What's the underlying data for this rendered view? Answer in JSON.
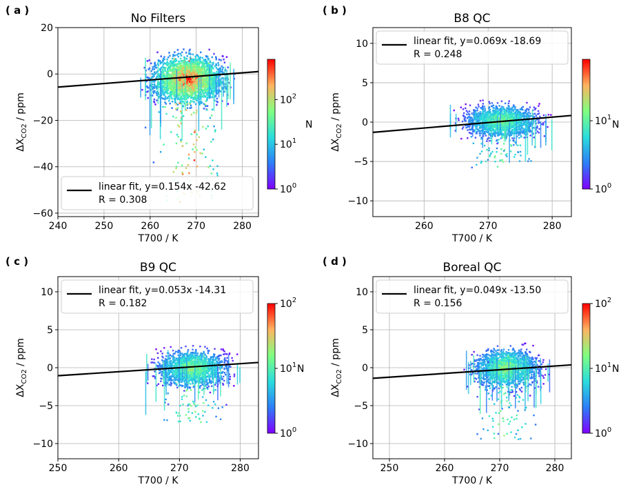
{
  "chart_data": [
    {
      "panel": "( a )",
      "type": "heatmap",
      "title": "No Filters",
      "xlabel": "T700 / K",
      "ylabel_base": "ΔX",
      "ylabel_sub": "CO2",
      "ylabel_tail": " / ppm",
      "xlim": [
        240,
        283.5
      ],
      "ylim": [
        -61.5,
        20
      ],
      "xticks": [
        240,
        250,
        260,
        270,
        280
      ],
      "yticks": [
        -60,
        -40,
        -20,
        0,
        20
      ],
      "fit": {
        "slope": 0.154,
        "intercept": -42.62
      },
      "legend": {
        "line1": "linear fit, y=0.154x -42.62",
        "line2": " R = 0.308",
        "position": "lower-left"
      },
      "colorbar": {
        "label": "N",
        "log_min": 0,
        "log_max": 2.9,
        "ticks": [
          {
            "base": "10",
            "exp": "0",
            "v": 0
          },
          {
            "base": "10",
            "exp": "1",
            "v": 1
          },
          {
            "base": "10",
            "exp": "2",
            "v": 2
          }
        ]
      },
      "density": {
        "center_x": 268,
        "center_y": -2,
        "spread_x": 11,
        "spread_y": 8,
        "outlier_y": -45
      }
    },
    {
      "panel": "( b )",
      "type": "heatmap",
      "title": "B8 QC",
      "xlabel": "T700 / K",
      "ylabel_base": "ΔX",
      "ylabel_sub": "CO2",
      "ylabel_tail": " / ppm",
      "xlim": [
        252,
        283
      ],
      "ylim": [
        -12,
        12
      ],
      "xticks": [
        260,
        270,
        280
      ],
      "yticks": [
        -10,
        -5,
        0,
        5,
        10
      ],
      "fit": {
        "slope": 0.069,
        "intercept": -18.69
      },
      "legend": {
        "line1": "linear fit, y=0.069x -18.69",
        "line2": " R = 0.248",
        "position": "upper-left"
      },
      "colorbar": {
        "label": "N",
        "log_min": 0,
        "log_max": 1.9,
        "ticks": [
          {
            "base": "10",
            "exp": "0",
            "v": 0
          },
          {
            "base": "10",
            "exp": "1",
            "v": 1
          }
        ]
      },
      "density": {
        "center_x": 272,
        "center_y": 0.2,
        "spread_x": 8,
        "spread_y": 1.6,
        "outlier_y": -5
      }
    },
    {
      "panel": "( c )",
      "type": "heatmap",
      "title": "B9 QC",
      "xlabel": "T700 / K",
      "ylabel_base": "ΔX",
      "ylabel_sub": "CO2",
      "ylabel_tail": " / ppm",
      "xlim": [
        250,
        283
      ],
      "ylim": [
        -12,
        12
      ],
      "xticks": [
        250,
        260,
        270,
        280
      ],
      "yticks": [
        -10,
        -5,
        0,
        5,
        10
      ],
      "fit": {
        "slope": 0.053,
        "intercept": -14.31
      },
      "legend": {
        "line1": "linear fit, y=0.053x -14.31",
        "line2": " R = 0.182",
        "position": "upper-left"
      },
      "colorbar": {
        "label": "N",
        "log_min": 0,
        "log_max": 2,
        "ticks": [
          {
            "base": "10",
            "exp": "0",
            "v": 0
          },
          {
            "base": "10",
            "exp": "1",
            "v": 1
          },
          {
            "base": "10",
            "exp": "2",
            "v": 2
          }
        ]
      },
      "density": {
        "center_x": 272,
        "center_y": 0,
        "spread_x": 8,
        "spread_y": 1.8,
        "outlier_y": -6
      }
    },
    {
      "panel": "( d )",
      "type": "heatmap",
      "title": "Boreal QC",
      "xlabel": "T700 / K",
      "ylabel_base": "ΔX",
      "ylabel_sub": "CO2",
      "ylabel_tail": " / ppm",
      "xlim": [
        247,
        283
      ],
      "ylim": [
        -12,
        12
      ],
      "xticks": [
        250,
        260,
        270,
        280
      ],
      "yticks": [
        -10,
        -5,
        0,
        5,
        10
      ],
      "fit": {
        "slope": 0.049,
        "intercept": -13.5
      },
      "legend": {
        "line1": "linear fit, y=0.049x -13.50",
        "line2": " R = 0.156",
        "position": "upper-left"
      },
      "colorbar": {
        "label": "N",
        "log_min": 0,
        "log_max": 2,
        "ticks": [
          {
            "base": "10",
            "exp": "0",
            "v": 0
          },
          {
            "base": "10",
            "exp": "1",
            "v": 1
          },
          {
            "base": "10",
            "exp": "2",
            "v": 2
          }
        ]
      },
      "density": {
        "center_x": 271,
        "center_y": 0,
        "spread_x": 8,
        "spread_y": 2.0,
        "outlier_y": -8
      }
    }
  ]
}
